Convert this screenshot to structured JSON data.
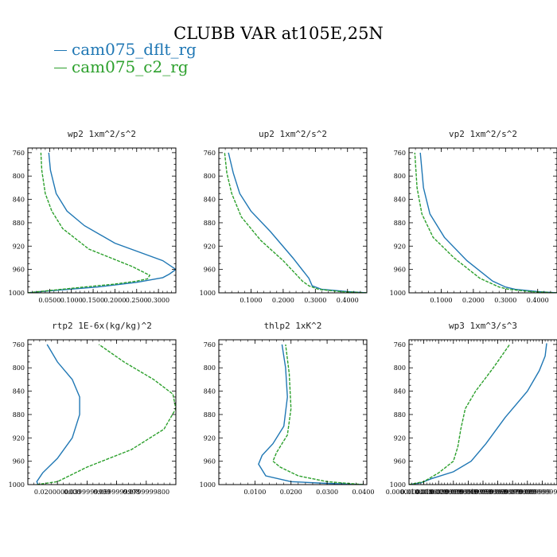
{
  "title": "CLUBB VAR at105E,25N",
  "legend": [
    {
      "label": "cam075_dflt_rg",
      "color": "#1f77b4"
    },
    {
      "label": "cam075_c2_rg",
      "color": "#2ca02c"
    }
  ],
  "chart_data": [
    {
      "type": "line",
      "title": "wp2   1xm^2/s^2",
      "ylim": [
        1000,
        752
      ],
      "yticks": [
        760,
        800,
        840,
        880,
        920,
        960,
        1000
      ],
      "ytick_labels": [
        "760",
        "800",
        "840",
        "880",
        "920",
        "960",
        "1000"
      ],
      "xlim": [
        0,
        0.34
      ],
      "xticks": [
        0.05,
        0.1,
        0.15,
        0.2,
        0.25,
        0.3
      ],
      "xtick_labels": [
        "0.0500",
        "0.1000",
        "0.1500",
        "0.2000",
        "0.2500",
        "0.3000"
      ],
      "series": [
        {
          "name": "cam075_dflt_rg",
          "x": [
            0.0,
            0.012,
            0.06,
            0.16,
            0.25,
            0.31,
            0.325,
            0.34,
            0.31,
            0.2,
            0.13,
            0.09,
            0.065,
            0.052,
            0.048
          ],
          "y": [
            1000,
            999,
            996,
            990,
            982,
            974,
            968,
            960,
            945,
            915,
            885,
            860,
            830,
            790,
            760
          ]
        },
        {
          "name": "cam075_c2_rg",
          "x": [
            0.0,
            0.01,
            0.05,
            0.13,
            0.2,
            0.25,
            0.275,
            0.28,
            0.24,
            0.14,
            0.08,
            0.055,
            0.04,
            0.032,
            0.03
          ],
          "y": [
            1000,
            999,
            996,
            990,
            985,
            980,
            976,
            970,
            955,
            925,
            890,
            860,
            830,
            790,
            760
          ]
        }
      ]
    },
    {
      "type": "line",
      "title": "up2   1xm^2/s^2",
      "ylim": [
        1000,
        752
      ],
      "yticks": [
        760,
        800,
        840,
        880,
        920,
        960,
        1000
      ],
      "ytick_labels": [
        "760",
        "800",
        "840",
        "880",
        "920",
        "960",
        "1000"
      ],
      "xlim": [
        0,
        0.46
      ],
      "xticks": [
        0.1,
        0.2,
        0.3,
        0.4
      ],
      "xtick_labels": [
        "0.1000",
        "0.2000",
        "0.3000",
        "0.4000"
      ],
      "series": [
        {
          "name": "cam075_dflt_rg",
          "x": [
            0.46,
            0.4,
            0.32,
            0.29,
            0.28,
            0.23,
            0.16,
            0.1,
            0.065,
            0.045,
            0.03
          ],
          "y": [
            1000,
            998,
            994,
            988,
            975,
            940,
            895,
            860,
            830,
            795,
            760
          ]
        },
        {
          "name": "cam075_c2_rg",
          "x": [
            0.46,
            0.38,
            0.31,
            0.28,
            0.26,
            0.2,
            0.13,
            0.07,
            0.04,
            0.025,
            0.018
          ],
          "y": [
            1000,
            998,
            994,
            988,
            980,
            945,
            910,
            870,
            830,
            795,
            760
          ]
        }
      ]
    },
    {
      "type": "line",
      "title": "vp2   1xm^2/s^2",
      "ylim": [
        1000,
        752
      ],
      "yticks": [
        760,
        800,
        840,
        880,
        920,
        960,
        1000
      ],
      "ytick_labels": [
        "760",
        "800",
        "840",
        "880",
        "920",
        "960",
        "1000"
      ],
      "xlim": [
        0,
        0.46
      ],
      "xticks": [
        0.1,
        0.2,
        0.3,
        0.4
      ],
      "xtick_labels": [
        "0.1000",
        "0.2000",
        "0.3000",
        "0.4000"
      ],
      "series": [
        {
          "name": "cam075_dflt_rg",
          "x": [
            0.46,
            0.4,
            0.33,
            0.3,
            0.26,
            0.18,
            0.11,
            0.065,
            0.045,
            0.035
          ],
          "y": [
            1000,
            998,
            994,
            990,
            980,
            945,
            905,
            865,
            820,
            760
          ]
        },
        {
          "name": "cam075_c2_rg",
          "x": [
            0.46,
            0.38,
            0.31,
            0.28,
            0.22,
            0.14,
            0.075,
            0.04,
            0.025,
            0.018
          ],
          "y": [
            1000,
            998,
            994,
            990,
            975,
            940,
            905,
            865,
            820,
            760
          ]
        }
      ]
    },
    {
      "type": "line",
      "title": "rtp2   1E-6x(kg/kg)^2",
      "ylim": [
        1000,
        752
      ],
      "yticks": [
        760,
        800,
        840,
        880,
        920,
        960,
        1000
      ],
      "ytick_labels": [
        "760",
        "800",
        "840",
        "880",
        "920",
        "960",
        "1000"
      ],
      "xlim": [
        0,
        0.1
      ],
      "xticks": [
        0.02,
        0.04,
        0.06,
        0.08
      ],
      "xtick_labels": [
        "0.0200000000",
        "0.0399999999",
        "0.0599999998",
        "0.0799999800"
      ],
      "series": [
        {
          "name": "cam075_dflt_rg",
          "x": [
            0.007,
            0.006,
            0.01,
            0.02,
            0.03,
            0.035,
            0.035,
            0.03,
            0.02,
            0.013
          ],
          "y": [
            1000,
            995,
            980,
            955,
            920,
            880,
            850,
            820,
            790,
            760
          ]
        },
        {
          "name": "cam075_c2_rg",
          "x": [
            0.006,
            0.02,
            0.04,
            0.07,
            0.092,
            0.1,
            0.098,
            0.085,
            0.065,
            0.048
          ],
          "y": [
            1000,
            995,
            970,
            940,
            905,
            870,
            845,
            820,
            790,
            760
          ]
        }
      ]
    },
    {
      "type": "line",
      "title": "thlp2   1xK^2",
      "ylim": [
        1000,
        752
      ],
      "yticks": [
        760,
        800,
        840,
        880,
        920,
        960,
        1000
      ],
      "ytick_labels": [
        "760",
        "800",
        "840",
        "880",
        "920",
        "960",
        "1000"
      ],
      "xlim": [
        0,
        0.041
      ],
      "xticks": [
        0.01,
        0.02,
        0.03,
        0.04
      ],
      "xtick_labels": [
        "0.0100",
        "0.0200",
        "0.0300",
        "0.0400"
      ],
      "series": [
        {
          "name": "cam075_dflt_rg",
          "x": [
            0.04,
            0.03,
            0.02,
            0.013,
            0.011,
            0.012,
            0.015,
            0.018,
            0.019,
            0.0185,
            0.0175
          ],
          "y": [
            1000,
            998,
            995,
            985,
            965,
            950,
            930,
            900,
            850,
            800,
            760
          ]
        },
        {
          "name": "cam075_c2_rg",
          "x": [
            0.04,
            0.03,
            0.022,
            0.017,
            0.015,
            0.016,
            0.019,
            0.02,
            0.0195,
            0.0185
          ],
          "y": [
            1000,
            995,
            985,
            970,
            960,
            945,
            915,
            870,
            810,
            760
          ]
        }
      ]
    },
    {
      "type": "line",
      "title": "wp3   1xm^3/s^3",
      "ylim": [
        1000,
        752
      ],
      "yticks": [
        760,
        800,
        840,
        880,
        920,
        960,
        1000
      ],
      "ytick_labels": [
        "760",
        "800",
        "840",
        "880",
        "920",
        "960",
        "1000"
      ],
      "xlim": [
        0,
        0.1
      ],
      "xticks": [
        0.0,
        0.01,
        0.02,
        0.03,
        0.04,
        0.05,
        0.06,
        0.07,
        0.08,
        0.09
      ],
      "xtick_labels": [
        "0.0000000000",
        "0.0100000000",
        "0.0199999999",
        "0.0299999999",
        "0.0399999999",
        "0.0499999999",
        "0.0599999999",
        "0.0699999999",
        "0.0799999999",
        "0.0899999999"
      ],
      "series": [
        {
          "name": "cam075_dflt_rg",
          "x": [
            0.0,
            0.008,
            0.015,
            0.03,
            0.042,
            0.052,
            0.065,
            0.08,
            0.088,
            0.092,
            0.093
          ],
          "y": [
            1000,
            997,
            990,
            978,
            960,
            930,
            885,
            840,
            805,
            780,
            758
          ]
        },
        {
          "name": "cam075_c2_rg",
          "x": [
            0.0,
            0.01,
            0.02,
            0.03,
            0.033,
            0.035,
            0.038,
            0.045,
            0.057,
            0.068
          ],
          "y": [
            1000,
            995,
            980,
            960,
            935,
            905,
            870,
            840,
            800,
            760
          ]
        }
      ]
    }
  ]
}
